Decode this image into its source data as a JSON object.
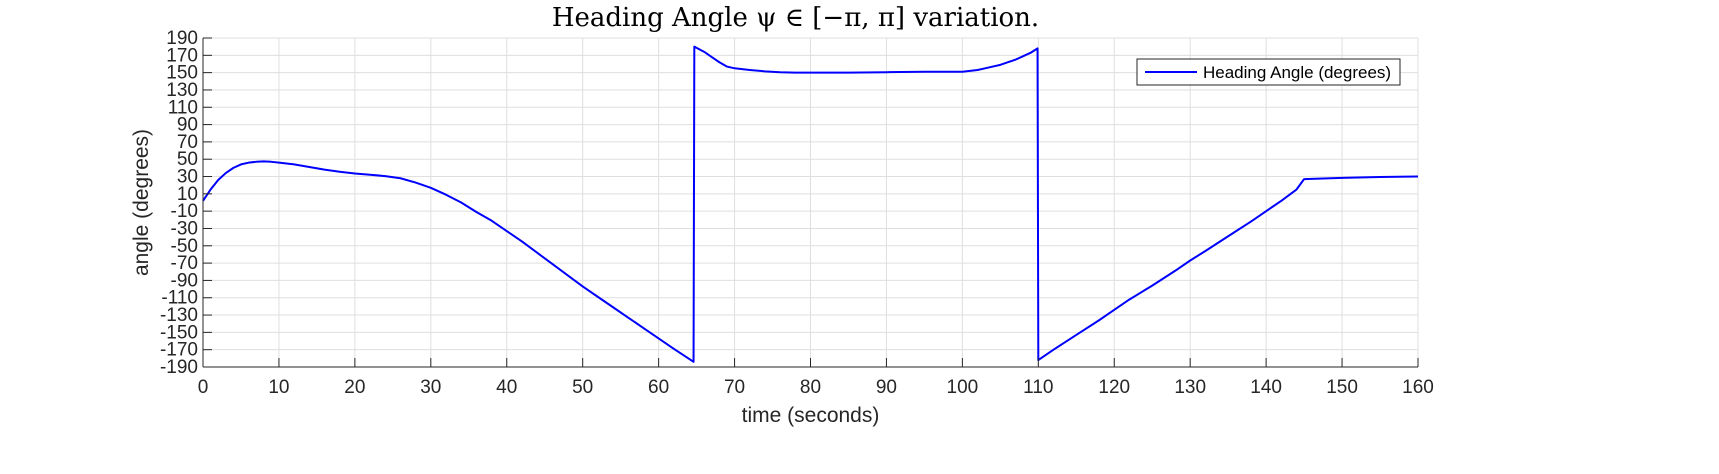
{
  "chart_data": {
    "type": "line",
    "title": "Heading Angle ψ ∈ [−π, π] variation.",
    "xlabel": "time (seconds)",
    "ylabel": "angle (degrees)",
    "xlim": [
      0,
      160
    ],
    "ylim": [
      -190,
      190
    ],
    "xticks": [
      0,
      10,
      20,
      30,
      40,
      50,
      60,
      70,
      80,
      90,
      100,
      110,
      120,
      130,
      140,
      150,
      160
    ],
    "yticks": [
      -190,
      -170,
      -150,
      -130,
      -110,
      -90,
      -70,
      -50,
      -30,
      -10,
      10,
      30,
      50,
      70,
      90,
      110,
      130,
      150,
      170,
      190
    ],
    "grid": true,
    "legend_position": "top-right",
    "colors": {
      "series": "#0000ff",
      "grid": "#dfdfdf",
      "axis": "#262626"
    },
    "series": [
      {
        "name": "Heading Angle (degrees)",
        "x": [
          0,
          1,
          2,
          3,
          4,
          5,
          6,
          7,
          8,
          9,
          10,
          12,
          14,
          16,
          18,
          20,
          22,
          24,
          26,
          28,
          30,
          32,
          34,
          36,
          38,
          40,
          42,
          44,
          46,
          48,
          50,
          52,
          54,
          56,
          58,
          60,
          62,
          64.6,
          64.7,
          66,
          67,
          68,
          69,
          70,
          72,
          74,
          76,
          78,
          80,
          85,
          90,
          95,
          98,
          100,
          101,
          102,
          103,
          104,
          105,
          106,
          107,
          108,
          109,
          109.9,
          110,
          112,
          115,
          118,
          120,
          122,
          125,
          128,
          130,
          132,
          135,
          138,
          140,
          142,
          144,
          145,
          150,
          155,
          160
        ],
        "y": [
          2,
          15,
          26,
          34,
          40,
          44,
          46,
          47,
          47.5,
          47,
          46,
          44,
          41,
          38,
          35.5,
          33.5,
          32,
          30.5,
          28,
          23,
          17,
          9,
          0,
          -11,
          -21,
          -33,
          -45,
          -58,
          -71,
          -84,
          -97,
          -109,
          -121,
          -133,
          -145,
          -157,
          -169,
          -184,
          180,
          174,
          168,
          162,
          157,
          155,
          153,
          151.5,
          150.5,
          150,
          150,
          150,
          150.5,
          151,
          151,
          151,
          152,
          153,
          155,
          157,
          159,
          162,
          165,
          169,
          173,
          178,
          -182,
          -170,
          -153,
          -136,
          -124,
          -112,
          -96,
          -79,
          -67,
          -56,
          -39,
          -22,
          -10,
          2,
          15,
          27,
          28.5,
          29.5,
          30
        ]
      }
    ]
  }
}
